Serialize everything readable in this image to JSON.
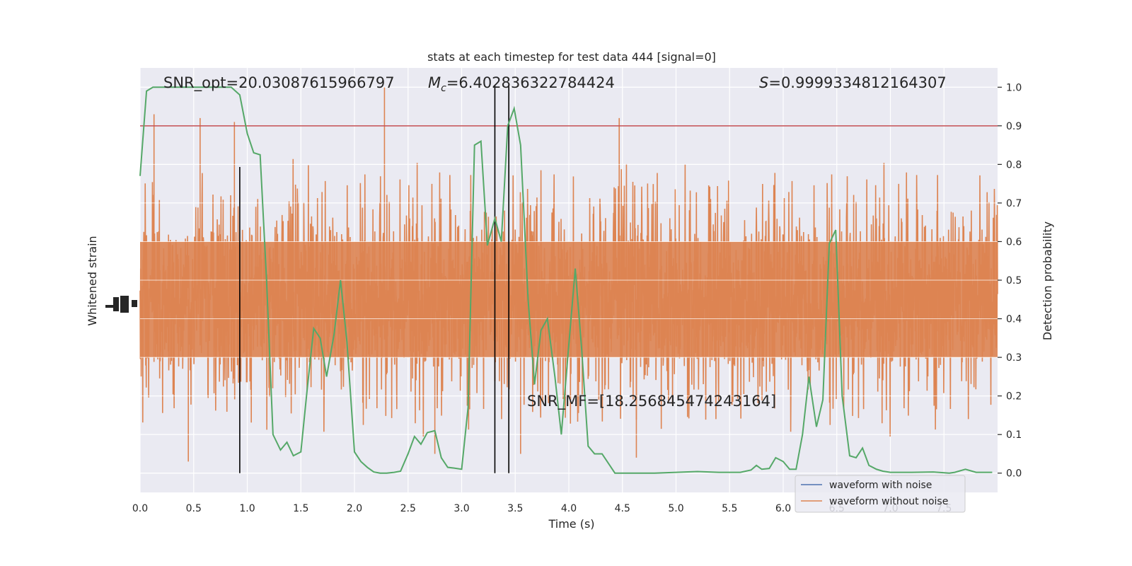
{
  "chart_data": {
    "type": "line",
    "title": "stats at each timestep for test data 444 [signal=0]",
    "xlabel": "Time (s)",
    "ylabel_left": "Whitened strain",
    "ylabel_right": "Detection probability",
    "xlim": [
      0.0,
      8.0
    ],
    "ylim_right": [
      -0.05,
      1.05
    ],
    "x_ticks": [
      "0.0",
      "0.5",
      "1.0",
      "1.5",
      "2.0",
      "2.5",
      "3.0",
      "3.5",
      "4.0",
      "4.5",
      "5.0",
      "5.5",
      "6.0",
      "6.5",
      "7.0",
      "7.5"
    ],
    "y_right_ticks": [
      "0.0",
      "0.1",
      "0.2",
      "0.3",
      "0.4",
      "0.5",
      "0.6",
      "0.7",
      "0.8",
      "0.9",
      "1.0"
    ],
    "grid": true,
    "legend_position": "lower-right",
    "legend": [
      "waveform with noise",
      "waveform without noise"
    ],
    "annotations": {
      "snr_opt": "SNR_opt=20.03087615966797",
      "mc_symbol": "M",
      "mc_sub": "c",
      "mc_value": "=6.402836322784424",
      "s_symbol": "S",
      "s_value": "=0.9999334812164307",
      "snr_mf": "SNR_MF=[18.256845474243164]"
    },
    "threshold": 0.9,
    "vertical_lines_x": [
      0.93,
      3.31,
      3.44
    ],
    "strain_noise": {
      "band_center": 0.45,
      "band_half_width": 0.15,
      "spike_spread": 0.22,
      "notable_spikes": [
        {
          "x": 0.13,
          "y": 0.93
        },
        {
          "x": 0.56,
          "y": 0.92
        },
        {
          "x": 0.88,
          "y": 0.91
        },
        {
          "x": 2.28,
          "y": 1.0
        },
        {
          "x": 4.47,
          "y": 0.92
        },
        {
          "x": 0.45,
          "y": 0.03
        },
        {
          "x": 4.63,
          "y": 0.04
        },
        {
          "x": 2.75,
          "y": 0.05
        },
        {
          "x": 3.55,
          "y": 0.05
        }
      ]
    },
    "series": [
      {
        "name": "Detection probability",
        "x": [
          0.0,
          0.06,
          0.12,
          0.2,
          0.3,
          0.5,
          0.7,
          0.85,
          0.93,
          1.0,
          1.06,
          1.12,
          1.18,
          1.24,
          1.31,
          1.37,
          1.43,
          1.5,
          1.56,
          1.62,
          1.68,
          1.74,
          1.81,
          1.87,
          1.93,
          2.0,
          2.06,
          2.12,
          2.18,
          2.24,
          2.3,
          2.37,
          2.43,
          2.5,
          2.56,
          2.62,
          2.68,
          2.75,
          2.81,
          2.87,
          2.93,
          3.0,
          3.06,
          3.12,
          3.18,
          3.24,
          3.31,
          3.37,
          3.43,
          3.49,
          3.55,
          3.62,
          3.68,
          3.74,
          3.8,
          3.87,
          3.93,
          3.99,
          4.06,
          4.12,
          4.18,
          4.24,
          4.31,
          4.37,
          4.43,
          4.6,
          4.8,
          5.0,
          5.2,
          5.4,
          5.6,
          5.7,
          5.75,
          5.8,
          5.87,
          5.93,
          6.0,
          6.06,
          6.12,
          6.18,
          6.24,
          6.31,
          6.37,
          6.43,
          6.49,
          6.55,
          6.62,
          6.68,
          6.74,
          6.8,
          6.87,
          6.93,
          7.0,
          7.2,
          7.4,
          7.55,
          7.6,
          7.7,
          7.8,
          7.95
        ],
        "values": [
          0.77,
          0.99,
          1.0,
          1.0,
          1.0,
          1.0,
          1.0,
          1.0,
          0.98,
          0.88,
          0.83,
          0.825,
          0.5,
          0.1,
          0.06,
          0.08,
          0.045,
          0.055,
          0.22,
          0.375,
          0.35,
          0.25,
          0.36,
          0.5,
          0.34,
          0.055,
          0.03,
          0.015,
          0.003,
          0.0,
          0.0,
          0.002,
          0.005,
          0.05,
          0.095,
          0.075,
          0.105,
          0.11,
          0.04,
          0.015,
          0.013,
          0.01,
          0.17,
          0.85,
          0.86,
          0.59,
          0.66,
          0.6,
          0.9,
          0.945,
          0.85,
          0.45,
          0.23,
          0.37,
          0.4,
          0.25,
          0.1,
          0.3,
          0.53,
          0.32,
          0.07,
          0.05,
          0.05,
          0.025,
          0.0,
          0.0,
          0.0,
          0.002,
          0.004,
          0.002,
          0.002,
          0.008,
          0.02,
          0.01,
          0.012,
          0.04,
          0.03,
          0.01,
          0.01,
          0.1,
          0.25,
          0.12,
          0.19,
          0.595,
          0.63,
          0.2,
          0.045,
          0.04,
          0.065,
          0.02,
          0.01,
          0.005,
          0.002,
          0.002,
          0.003,
          0.0,
          0.002,
          0.01,
          0.002,
          0.002
        ]
      }
    ],
    "colors": {
      "background": "#eaeaf2",
      "grid": "#ffffff",
      "noise": "#dd8452",
      "signal": "#4c72b0",
      "probability": "#55a868",
      "threshold": "#c44e52",
      "vlines": "#000000"
    }
  }
}
